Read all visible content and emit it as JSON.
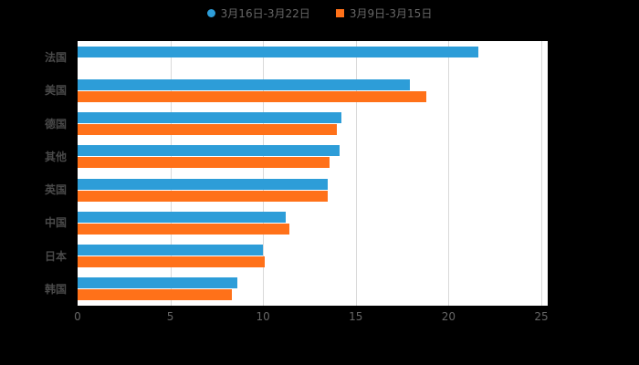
{
  "chart_data": {
    "type": "bar",
    "orientation": "horizontal",
    "title": "",
    "categories": [
      "法国",
      "美国",
      "德国",
      "其他",
      "英国",
      "中国",
      "日本",
      "韩国"
    ],
    "series": [
      {
        "name": "3月16日-3月22日",
        "color": "#2D9DD8",
        "marker": "circle",
        "values": [
          21.6,
          17.9,
          14.2,
          14.1,
          13.5,
          11.2,
          10.0,
          8.6
        ]
      },
      {
        "name": "3月9日-3月15日",
        "color": "#FF7119",
        "marker": "square",
        "values": [
          0,
          18.8,
          14.0,
          13.6,
          13.5,
          11.4,
          10.1,
          8.3
        ]
      }
    ],
    "xlim": [
      0,
      25
    ],
    "xticks": [
      "0",
      "5",
      "10",
      "15",
      "20",
      "25"
    ],
    "grid": true,
    "legend_position": "top",
    "colors": {
      "background": "#000000",
      "plot_background": "#ffffff",
      "gridline": "#d9d9d9",
      "tick_label": "#666666",
      "category_label": "#4a4a4a",
      "legend_label": "#666666"
    }
  }
}
